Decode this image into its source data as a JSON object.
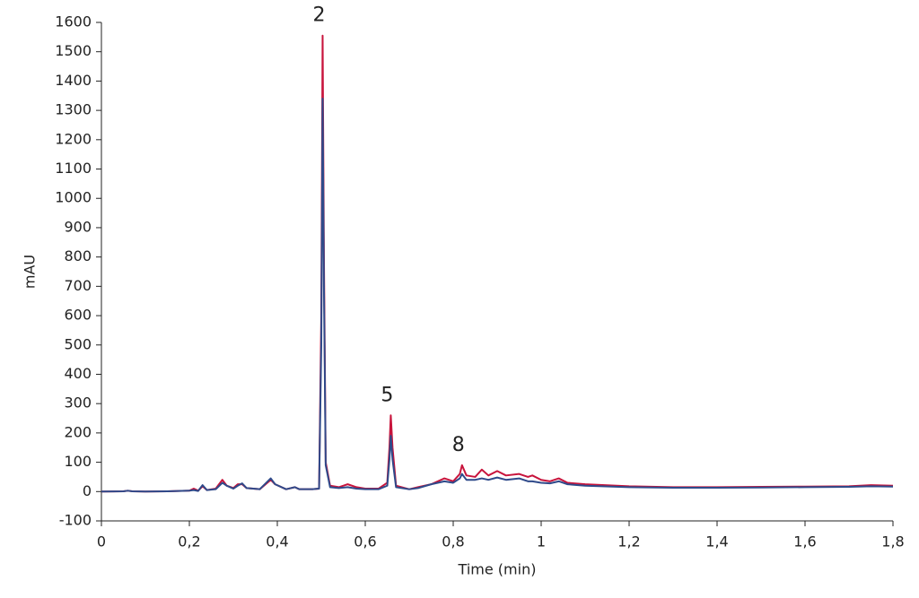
{
  "chart_data": {
    "type": "line",
    "x_label": "Time (min)",
    "y_label": "mAU",
    "xlim": [
      0,
      1.8
    ],
    "ylim": [
      -100,
      1600
    ],
    "xticks": [
      0,
      {
        "value": 0.2,
        "label": "0,2"
      },
      {
        "value": 0.4,
        "label": "0,4"
      },
      {
        "value": 0.6,
        "label": "0,6"
      },
      {
        "value": 0.8,
        "label": "0,8"
      },
      1,
      {
        "value": 1.2,
        "label": "1,2"
      },
      {
        "value": 1.4,
        "label": "1,4"
      },
      {
        "value": 1.6,
        "label": "1,6"
      },
      {
        "value": 1.8,
        "label": "1,8"
      }
    ],
    "yticks": [
      -100,
      0,
      100,
      200,
      300,
      400,
      500,
      600,
      700,
      800,
      900,
      1000,
      1100,
      1200,
      1300,
      1400,
      1500,
      1600
    ],
    "x": [
      0,
      0.05,
      0.06,
      0.07,
      0.1,
      0.15,
      0.2,
      0.21,
      0.22,
      0.23,
      0.24,
      0.26,
      0.275,
      0.285,
      0.3,
      0.31,
      0.32,
      0.33,
      0.36,
      0.385,
      0.395,
      0.42,
      0.44,
      0.45,
      0.48,
      0.495,
      0.5,
      0.503,
      0.506,
      0.51,
      0.52,
      0.54,
      0.56,
      0.58,
      0.6,
      0.63,
      0.65,
      0.655,
      0.658,
      0.662,
      0.67,
      0.7,
      0.72,
      0.75,
      0.78,
      0.8,
      0.815,
      0.82,
      0.83,
      0.85,
      0.865,
      0.88,
      0.9,
      0.92,
      0.95,
      0.97,
      0.98,
      1,
      1.02,
      1.04,
      1.06,
      1.1,
      1.2,
      1.3,
      1.4,
      1.5,
      1.6,
      1.7,
      1.75,
      1.8
    ],
    "series": [
      {
        "color": "#c8143c",
        "values": [
          0,
          1,
          3,
          1,
          0,
          1,
          3,
          10,
          3,
          18,
          5,
          10,
          40,
          20,
          12,
          25,
          25,
          12,
          8,
          40,
          25,
          8,
          15,
          8,
          8,
          10,
          600,
          1555,
          800,
          100,
          20,
          15,
          25,
          15,
          10,
          10,
          30,
          150,
          260,
          150,
          20,
          8,
          15,
          25,
          45,
          35,
          60,
          90,
          55,
          50,
          75,
          55,
          70,
          55,
          60,
          50,
          55,
          40,
          35,
          45,
          30,
          25,
          18,
          15,
          15,
          16,
          17,
          18,
          22,
          20
        ]
      },
      {
        "color": "#2f4a8a",
        "values": [
          0,
          1,
          3,
          1,
          0,
          1,
          3,
          5,
          2,
          22,
          5,
          8,
          30,
          20,
          10,
          20,
          28,
          12,
          8,
          45,
          25,
          8,
          15,
          8,
          8,
          10,
          500,
          1340,
          700,
          90,
          15,
          12,
          15,
          10,
          8,
          8,
          20,
          110,
          190,
          110,
          15,
          8,
          12,
          25,
          35,
          30,
          45,
          60,
          40,
          40,
          45,
          40,
          48,
          40,
          45,
          35,
          35,
          30,
          28,
          35,
          25,
          20,
          15,
          13,
          13,
          14,
          15,
          16,
          18,
          17
        ]
      }
    ],
    "annotations": [
      {
        "text": "2",
        "x": 0.503
      },
      {
        "text": "5",
        "x": 0.658
      },
      {
        "text": "8",
        "x": 0.82
      }
    ]
  }
}
